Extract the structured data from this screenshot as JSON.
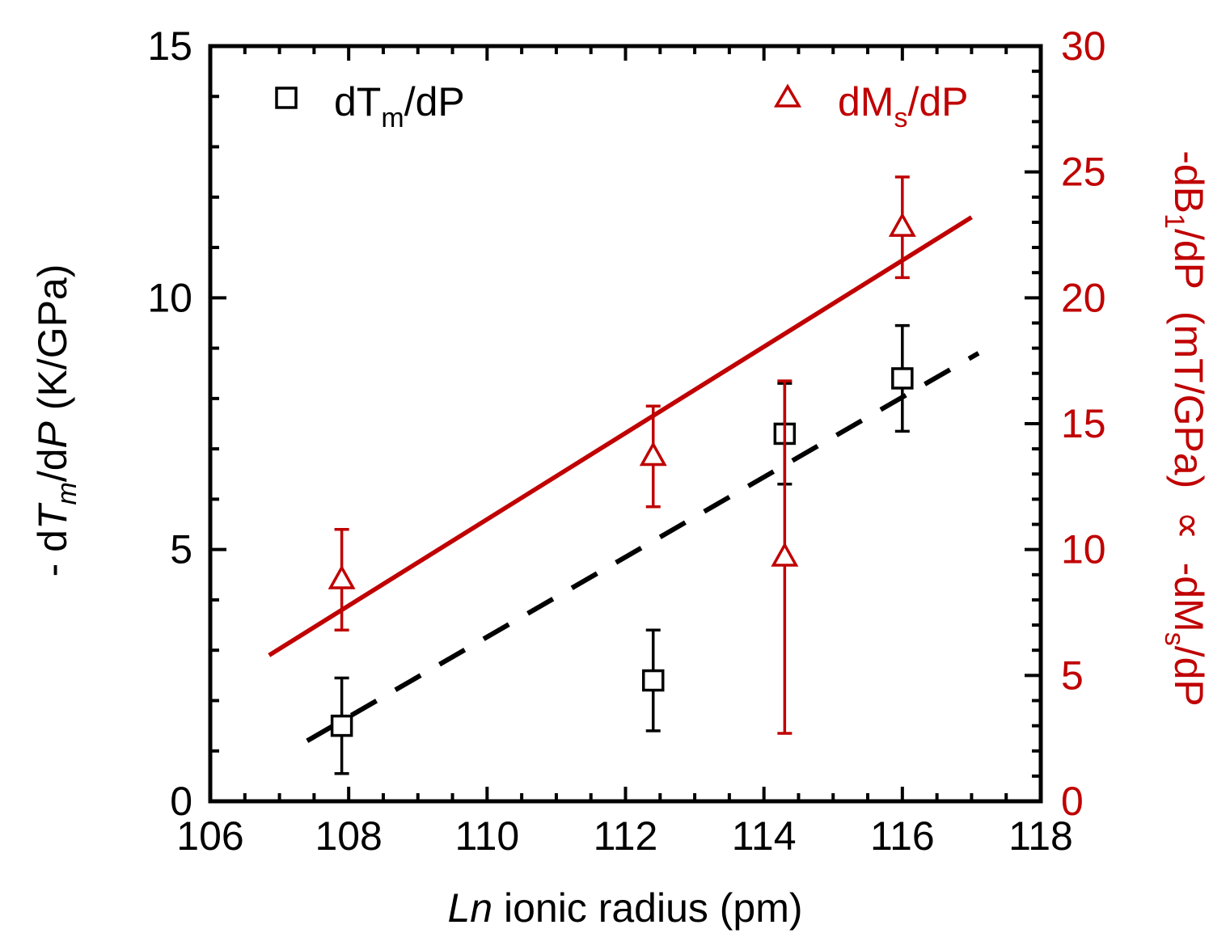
{
  "chart_data": {
    "type": "scatter",
    "x_axis": {
      "label_italic": "Ln",
      "label_rest": " ionic radius (pm)",
      "range": [
        106,
        118
      ],
      "ticks": [
        "106",
        "108",
        "110",
        "112",
        "114",
        "116",
        "118"
      ],
      "minor_step": 0.5
    },
    "y_left": {
      "label_prefix": "- d",
      "label_T": "T",
      "label_m": "m",
      "label_mid": "/d",
      "label_P": "P",
      "label_units": " (K/GPa)",
      "range": [
        0,
        15
      ],
      "ticks": [
        "0",
        "5",
        "10",
        "15"
      ],
      "minor_step": 1
    },
    "y_right": {
      "label_part1": "-dB",
      "label_sub1": "1",
      "label_part2": "/dP  (mT/GPa)  ∝  -dM",
      "label_sub2": "s",
      "label_part3": "/dP",
      "range": [
        0,
        30
      ],
      "ticks": [
        "0",
        "5",
        "10",
        "15",
        "20",
        "25",
        "30"
      ],
      "minor_step": 1
    },
    "series": [
      {
        "name": "dTm/dP",
        "legend_main": "dT",
        "legend_sub": "m",
        "legend_tail": "/dP",
        "axis": "left",
        "marker": "square",
        "color": "#000000",
        "x": [
          107.9,
          112.4,
          114.3,
          116.0
        ],
        "y": [
          1.5,
          2.4,
          7.3,
          8.4
        ],
        "err": [
          0.95,
          1.0,
          1.0,
          1.05
        ],
        "fit": {
          "style": "dashed",
          "x": [
            107.4,
            117.1
          ],
          "y": [
            1.2,
            8.9
          ]
        }
      },
      {
        "name": "dMs/dP",
        "legend_main": "dM",
        "legend_sub": "s",
        "legend_tail": "/dP",
        "axis": "right",
        "marker": "triangle",
        "color": "#c00000",
        "x": [
          107.9,
          112.4,
          114.3,
          116.0
        ],
        "y": [
          8.8,
          13.7,
          9.7,
          22.8
        ],
        "err": [
          2.0,
          2.0,
          7.0,
          2.0
        ],
        "fit": {
          "style": "solid",
          "x": [
            106.85,
            117.0
          ],
          "y": [
            5.8,
            23.2
          ]
        }
      }
    ]
  }
}
